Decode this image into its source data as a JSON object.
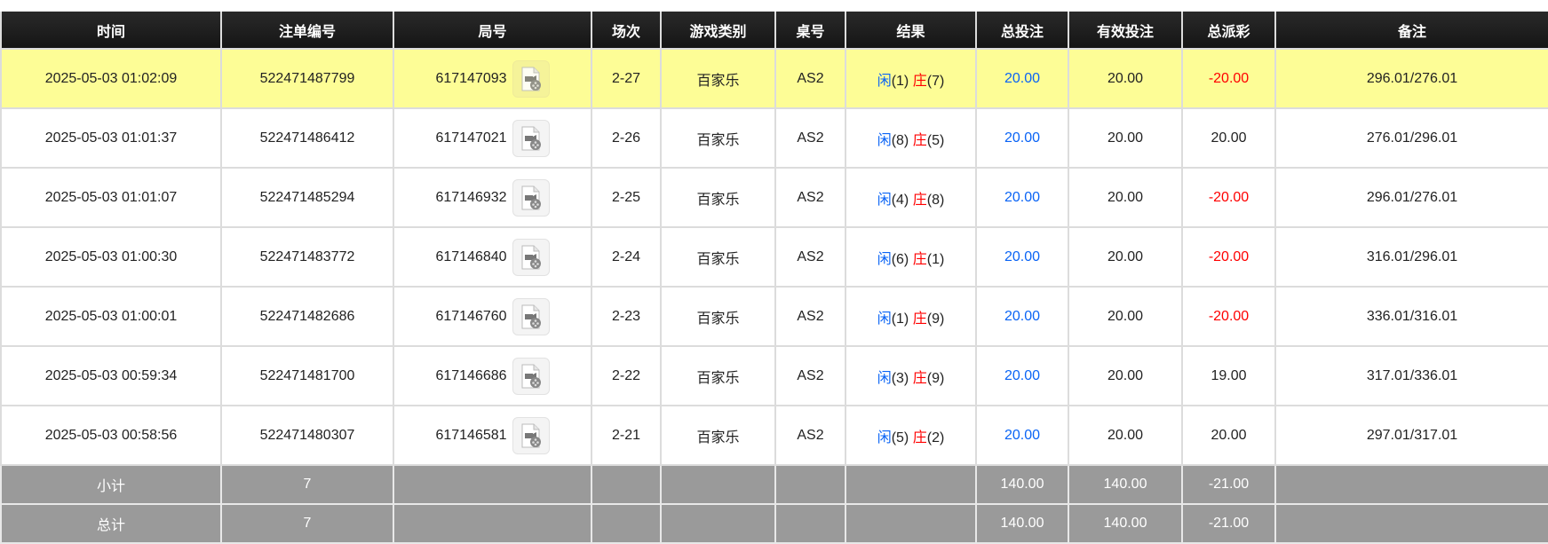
{
  "headers": [
    "时间",
    "注单编号",
    "局号",
    "场次",
    "游戏类别",
    "桌号",
    "结果",
    "总投注",
    "有效投注",
    "总派彩",
    "备注"
  ],
  "rows": [
    {
      "time": "2025-05-03 01:02:09",
      "bet_id": "522471487799",
      "round_id": "617147093",
      "session": "2-27",
      "game": "百家乐",
      "table": "AS2",
      "player_label": "闲",
      "player_score": "(1)",
      "banker_label": "庄",
      "banker_score": "(7)",
      "total_bet": "20.00",
      "valid_bet": "20.00",
      "payout": "-20.00",
      "payout_negative": true,
      "note": "296.01/276.01",
      "highlighted": true
    },
    {
      "time": "2025-05-03 01:01:37",
      "bet_id": "522471486412",
      "round_id": "617147021",
      "session": "2-26",
      "game": "百家乐",
      "table": "AS2",
      "player_label": "闲",
      "player_score": "(8)",
      "banker_label": "庄",
      "banker_score": "(5)",
      "total_bet": "20.00",
      "valid_bet": "20.00",
      "payout": "20.00",
      "payout_negative": false,
      "note": "276.01/296.01"
    },
    {
      "time": "2025-05-03 01:01:07",
      "bet_id": "522471485294",
      "round_id": "617146932",
      "session": "2-25",
      "game": "百家乐",
      "table": "AS2",
      "player_label": "闲",
      "player_score": "(4)",
      "banker_label": "庄",
      "banker_score": "(8)",
      "total_bet": "20.00",
      "valid_bet": "20.00",
      "payout": "-20.00",
      "payout_negative": true,
      "note": "296.01/276.01"
    },
    {
      "time": "2025-05-03 01:00:30",
      "bet_id": "522471483772",
      "round_id": "617146840",
      "session": "2-24",
      "game": "百家乐",
      "table": "AS2",
      "player_label": "闲",
      "player_score": "(6)",
      "banker_label": "庄",
      "banker_score": "(1)",
      "total_bet": "20.00",
      "valid_bet": "20.00",
      "payout": "-20.00",
      "payout_negative": true,
      "note": "316.01/296.01"
    },
    {
      "time": "2025-05-03 01:00:01",
      "bet_id": "522471482686",
      "round_id": "617146760",
      "session": "2-23",
      "game": "百家乐",
      "table": "AS2",
      "player_label": "闲",
      "player_score": "(1)",
      "banker_label": "庄",
      "banker_score": "(9)",
      "total_bet": "20.00",
      "valid_bet": "20.00",
      "payout": "-20.00",
      "payout_negative": true,
      "note": "336.01/316.01"
    },
    {
      "time": "2025-05-03 00:59:34",
      "bet_id": "522471481700",
      "round_id": "617146686",
      "session": "2-22",
      "game": "百家乐",
      "table": "AS2",
      "player_label": "闲",
      "player_score": "(3)",
      "banker_label": "庄",
      "banker_score": "(9)",
      "total_bet": "20.00",
      "valid_bet": "20.00",
      "payout": "19.00",
      "payout_negative": false,
      "note": "317.01/336.01"
    },
    {
      "time": "2025-05-03 00:58:56",
      "bet_id": "522471480307",
      "round_id": "617146581",
      "session": "2-21",
      "game": "百家乐",
      "table": "AS2",
      "player_label": "闲",
      "player_score": "(5)",
      "banker_label": "庄",
      "banker_score": "(2)",
      "total_bet": "20.00",
      "valid_bet": "20.00",
      "payout": "20.00",
      "payout_negative": false,
      "note": "297.01/317.01"
    }
  ],
  "summary": [
    {
      "label": "小计",
      "count": "7",
      "total_bet": "140.00",
      "valid_bet": "140.00",
      "payout": "-21.00"
    },
    {
      "label": "总计",
      "count": "7",
      "total_bet": "140.00",
      "valid_bet": "140.00",
      "payout": "-21.00"
    }
  ],
  "icons": {
    "replay": "video-file-icon"
  },
  "colors": {
    "header_bg": "#1a1a1a",
    "highlight_row": "#fdfd96",
    "summary_bg": "#9a9a9a",
    "player": "#0a64f5",
    "banker": "#ff0000",
    "negative": "#ff0000",
    "total_bet": "#0a64f5"
  }
}
